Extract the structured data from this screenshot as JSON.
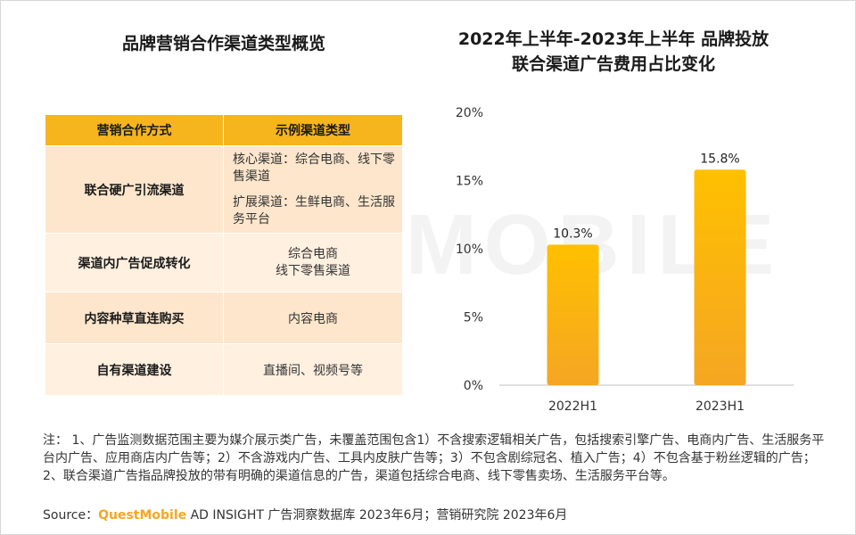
{
  "watermark": "QUESTMOBILE",
  "left_title": "品牌营销合作渠道类型概览",
  "right_title_line1": "2022年上半年-2023年上半年 品牌投放",
  "right_title_line2": "联合渠道广告费用占比变化",
  "table": {
    "header_mode": "营销合作方式",
    "header_example": "示例渠道类型",
    "rows": [
      {
        "mode": "联合硬广引流渠道",
        "example_lines": [
          "核心渠道：综合电商、线下零售渠道",
          "扩展渠道：生鲜电商、生活服务平台"
        ]
      },
      {
        "mode": "渠道内广告促成转化",
        "example_lines": [
          "综合电商",
          "线下零售渠道"
        ]
      },
      {
        "mode": "内容种草直连购买",
        "example_lines": [
          "内容电商"
        ]
      },
      {
        "mode": "自有渠道建设",
        "example_lines": [
          "直播间、视频号等"
        ]
      }
    ]
  },
  "chart_data": {
    "type": "bar",
    "title": "2022年上半年-2023年上半年 品牌投放联合渠道广告费用占比变化",
    "categories": [
      "2022H1",
      "2023H1"
    ],
    "values": [
      10.3,
      15.8
    ],
    "value_labels": [
      "10.3%",
      "15.8%"
    ],
    "yticks": [
      "0%",
      "5%",
      "10%",
      "15%",
      "20%"
    ],
    "ylim": [
      0,
      20
    ],
    "xlabel": "",
    "ylabel": "",
    "bar_color_top": "#ffc000",
    "bar_color_bottom": "#f5a623"
  },
  "notes": "注： 1、广告监测数据范围主要为媒介展示类广告，未覆盖范围包含1）不含搜索逻辑相关广告，包括搜索引擎广告、电商内广告、生活服务平台内广告、应用商店内广告等；2）不含游戏内广告、工具内皮肤广告等；3）不包含剧综冠名、植入广告；4）不包含基于粉丝逻辑的广告；2、联合渠道广告指品牌投放的带有明确的渠道信息的广告，渠道包括综合电商、线下零售卖场、生活服务平台等。",
  "source": {
    "prefix": "Source：",
    "brand": "QuestMobile",
    "rest": " AD INSIGHT 广告洞察数据库 2023年6月；营销研究院 2023年6月"
  }
}
